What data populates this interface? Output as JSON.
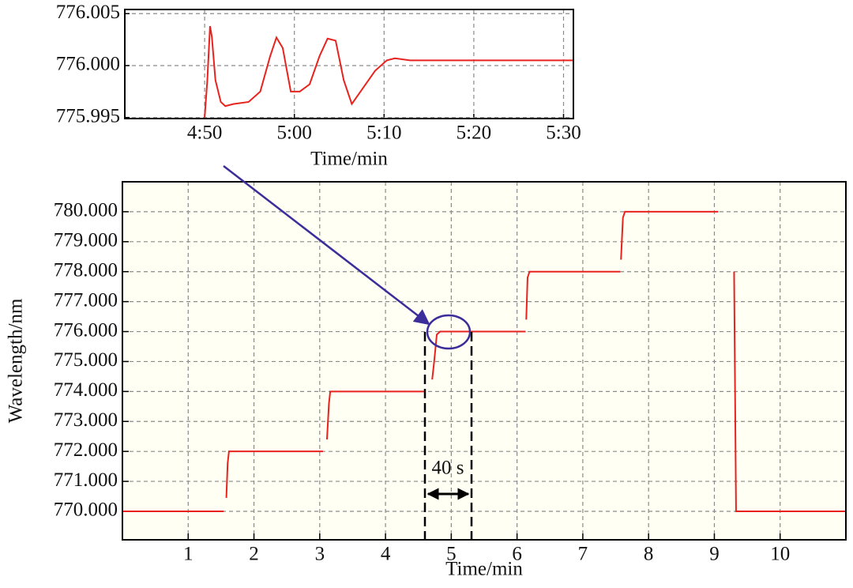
{
  "chart_data": [
    {
      "type": "line",
      "xlabel": "Time/min",
      "ylabel": "Wavelength/nm",
      "annotation": "40 s",
      "xlim": [
        0,
        11
      ],
      "ylim": [
        769.05,
        781.0
      ],
      "xticks": [
        1,
        2,
        3,
        4,
        5,
        6,
        7,
        8,
        9,
        10
      ],
      "yticks": [
        {
          "value": 770,
          "label": "770.000"
        },
        {
          "value": 771,
          "label": "771.000"
        },
        {
          "value": 772,
          "label": "772.000"
        },
        {
          "value": 773,
          "label": "773.000"
        },
        {
          "value": 774,
          "label": "774.000"
        },
        {
          "value": 775,
          "label": "775.000"
        },
        {
          "value": 776,
          "label": "776.000"
        },
        {
          "value": 777,
          "label": "777.000"
        },
        {
          "value": 778,
          "label": "778.000"
        },
        {
          "value": 779,
          "label": "779.000"
        },
        {
          "value": 780,
          "label": "780.000"
        }
      ],
      "grid": true,
      "x": [
        0,
        1.54,
        null,
        1.58,
        1.6,
        1.62,
        3.05,
        null,
        3.11,
        3.14,
        3.16,
        4.6,
        null,
        4.71,
        4.74,
        4.78,
        4.83,
        6.13,
        null,
        6.14,
        6.16,
        6.19,
        7.57,
        null,
        7.58,
        7.61,
        7.64,
        9.06,
        null,
        9.3,
        9.33,
        11
      ],
      "series": [
        {
          "color": "#e8231f",
          "values": [
            770,
            770,
            null,
            770.45,
            771.6,
            772,
            772,
            null,
            772.4,
            773.6,
            774,
            774,
            null,
            774.4,
            775,
            775.9,
            776,
            776,
            null,
            776.4,
            777.8,
            778,
            778,
            null,
            778.4,
            779.8,
            780,
            780,
            null,
            778,
            770,
            770
          ]
        }
      ]
    },
    {
      "type": "line",
      "xlabel": "Time/min",
      "xlim": [
        281.1,
        331.1
      ],
      "ylim": [
        775.9949,
        776.0054
      ],
      "xticks": [
        {
          "value": 290,
          "label": "4:50"
        },
        {
          "value": 300,
          "label": "5:00"
        },
        {
          "value": 310,
          "label": "5:10"
        },
        {
          "value": 320,
          "label": "5:20"
        },
        {
          "value": 330,
          "label": "5:30"
        }
      ],
      "yticks": [
        {
          "value": 775.995,
          "label": "775.995"
        },
        {
          "value": 776.0,
          "label": "776.000"
        },
        {
          "value": 776.005,
          "label": "776.005"
        }
      ],
      "grid": true,
      "x": [
        290,
        290.3,
        290.6,
        290.8,
        291.2,
        291.8,
        292.3,
        293.2,
        294.9,
        296.2,
        297.3,
        298.0,
        298.7,
        299.6,
        300.6,
        301.7,
        302.8,
        303.7,
        304.6,
        305.5,
        306.4,
        307.7,
        309.0,
        310.3,
        311.2,
        312.9,
        331.1
      ],
      "series": [
        {
          "color": "#e8231f",
          "values": [
            775.995,
            775.9986,
            776.0038,
            776.0028,
            775.9986,
            775.9965,
            775.9961,
            775.9963,
            775.9965,
            775.9975,
            776.0009,
            776.0027,
            776.0017,
            775.9975,
            775.9975,
            775.9982,
            776.0009,
            776.0026,
            776.0024,
            775.9986,
            775.9963,
            775.9979,
            775.9995,
            776.0005,
            776.0007,
            776.0005,
            776.0005
          ]
        }
      ]
    }
  ]
}
